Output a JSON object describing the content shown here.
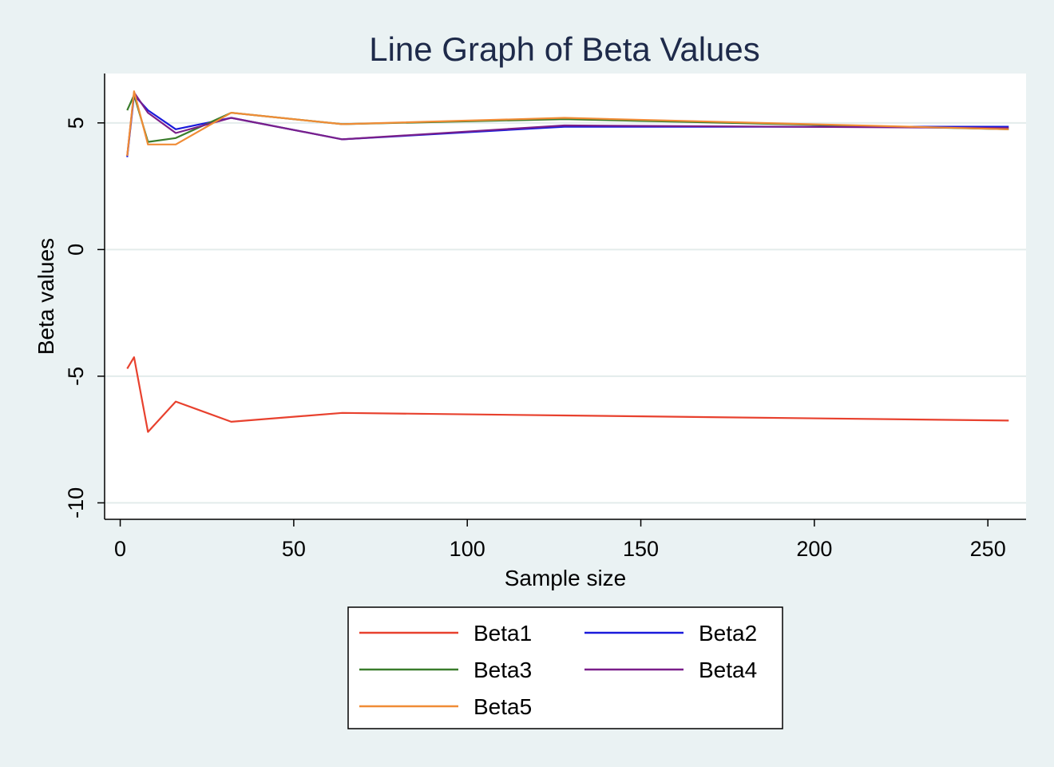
{
  "chart_data": {
    "type": "line",
    "title": "Line Graph of Beta Values",
    "xlabel": "Sample size",
    "ylabel": "Beta values",
    "xlim": [
      -4.5,
      261
    ],
    "ylim": [
      -10.65,
      6.95
    ],
    "x_ticks": [
      0,
      50,
      100,
      150,
      200,
      250
    ],
    "y_ticks": [
      -10,
      -5,
      0,
      5
    ],
    "x_tick_labels": [
      "0",
      "50",
      "100",
      "150",
      "200",
      "250"
    ],
    "y_tick_labels": [
      "-10",
      "-5",
      "0",
      "5"
    ],
    "grid": "horizontal",
    "legend_position": "bottom",
    "x": [
      2,
      4,
      8,
      16,
      32,
      64,
      128,
      256
    ],
    "series": [
      {
        "name": "Beta1",
        "color": "#e8412e",
        "values": [
          -4.7,
          -4.25,
          -7.2,
          -6.0,
          -6.8,
          -6.45,
          -6.55,
          -6.75
        ]
      },
      {
        "name": "Beta2",
        "color": "#1a1adb",
        "values": [
          3.65,
          6.1,
          5.5,
          4.75,
          5.2,
          4.35,
          4.85,
          4.85
        ]
      },
      {
        "name": "Beta3",
        "color": "#3a7d2c",
        "values": [
          5.5,
          6.1,
          4.25,
          4.4,
          5.4,
          4.95,
          5.15,
          4.75
        ]
      },
      {
        "name": "Beta4",
        "color": "#7a1f8a",
        "values": [
          3.7,
          6.2,
          5.4,
          4.6,
          5.2,
          4.35,
          4.9,
          4.8
        ]
      },
      {
        "name": "Beta5",
        "color": "#f08c36",
        "values": [
          3.7,
          6.25,
          4.15,
          4.15,
          5.4,
          4.95,
          5.2,
          4.75
        ]
      }
    ]
  }
}
